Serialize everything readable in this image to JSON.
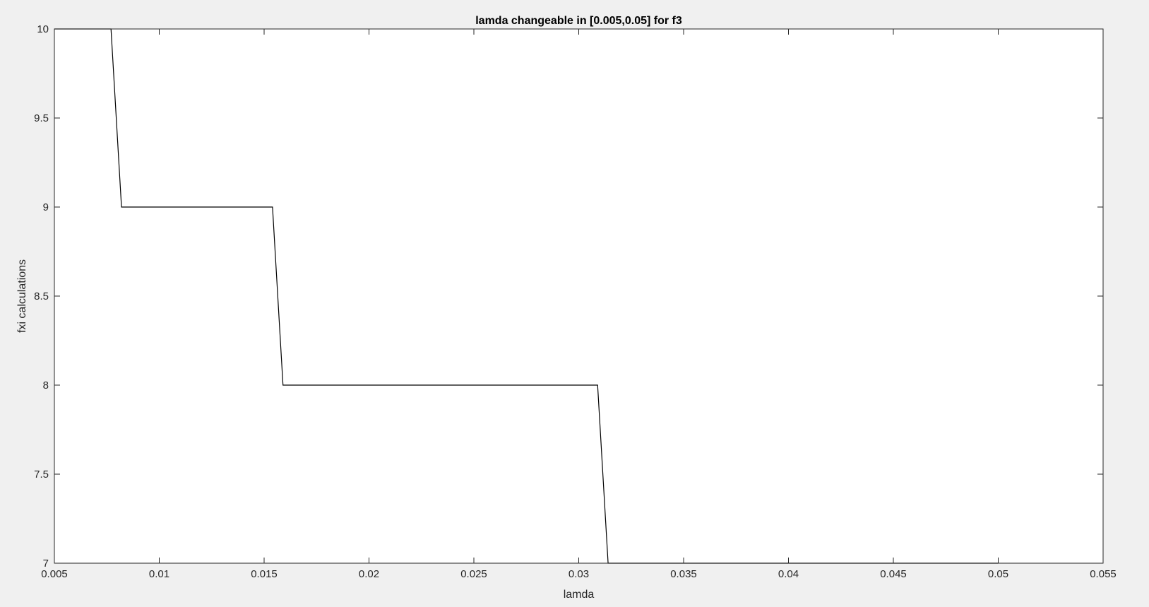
{
  "chart_data": {
    "type": "line",
    "title": "lamda changeable in [0.005,0.05] for f3",
    "xlabel": "lamda",
    "ylabel": "fxi calculations",
    "xlim": [
      0.005,
      0.055
    ],
    "ylim": [
      7,
      10
    ],
    "xticks": [
      0.005,
      0.01,
      0.015,
      0.02,
      0.025,
      0.03,
      0.035,
      0.04,
      0.045,
      0.05,
      0.055
    ],
    "xtick_labels": [
      "0.005",
      "0.01",
      "0.015",
      "0.02",
      "0.025",
      "0.03",
      "0.035",
      "0.04",
      "0.045",
      "0.05",
      "0.055"
    ],
    "yticks": [
      7,
      7.5,
      8,
      8.5,
      9,
      9.5,
      10
    ],
    "ytick_labels": [
      "7",
      "7.5",
      "8",
      "8.5",
      "9",
      "9.5",
      "10"
    ],
    "grid": false,
    "series": [
      {
        "color": "#000000",
        "x": [
          0.005,
          0.0077,
          0.0082,
          0.0154,
          0.0159,
          0.0309,
          0.0314,
          0.05
        ],
        "y": [
          10,
          10,
          9,
          9,
          8,
          8,
          7,
          7
        ]
      }
    ]
  }
}
